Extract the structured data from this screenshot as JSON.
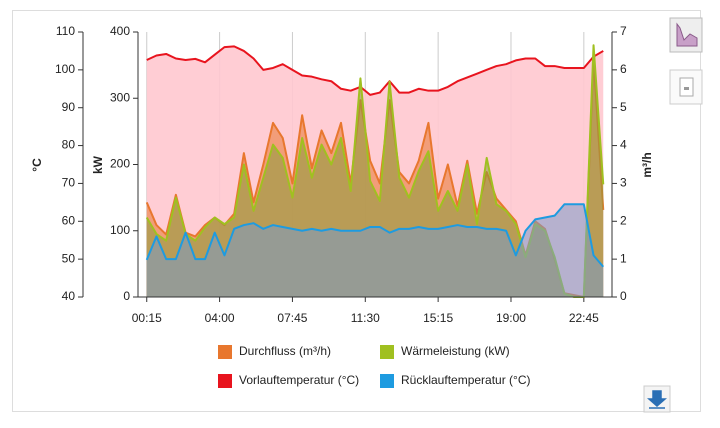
{
  "chart_data": {
    "type": "area",
    "ylabel": "°C",
    "y2label": "kW",
    "y3label": "m³/h",
    "ylim": [
      40,
      110
    ],
    "yticks": [
      40,
      50,
      60,
      70,
      80,
      90,
      100,
      110
    ],
    "y2lim": [
      0,
      400
    ],
    "y2ticks": [
      0,
      100,
      200,
      300,
      400
    ],
    "y3lim": [
      0,
      7
    ],
    "y3ticks": [
      0,
      1,
      2,
      3,
      4,
      5,
      6,
      7
    ],
    "xlim": [
      -0.2,
      24.2
    ],
    "xticks": [
      {
        "value": 0.25,
        "label": "00:15"
      },
      {
        "value": 4,
        "label": "04:00"
      },
      {
        "value": 7.75,
        "label": "07:45"
      },
      {
        "value": 11.5,
        "label": "11:30"
      },
      {
        "value": 15.25,
        "label": "15:15"
      },
      {
        "value": 19,
        "label": "19:00"
      },
      {
        "value": 22.75,
        "label": "22:45"
      }
    ],
    "grid": true,
    "x": [
      0.25,
      0.75,
      1.25,
      1.75,
      2.25,
      2.75,
      3.25,
      3.75,
      4.25,
      4.75,
      5.25,
      5.75,
      6.25,
      6.75,
      7.25,
      7.75,
      8.25,
      8.75,
      9.25,
      9.75,
      10.25,
      10.75,
      11.25,
      11.75,
      12.25,
      12.75,
      13.25,
      13.75,
      14.25,
      14.75,
      15.25,
      15.75,
      16.25,
      16.75,
      17.25,
      17.75,
      18.25,
      18.75,
      19.25,
      19.75,
      20.25,
      20.75,
      21.25,
      21.75,
      22.25,
      22.75,
      23.25,
      23.75
    ],
    "series": [
      {
        "name": "Vorlauftemperatur (°C)",
        "color": "#e8141e",
        "fill": "#ffc8cf",
        "axis": "y",
        "values": [
          102.6,
          103.8,
          104.2,
          103,
          102.6,
          102.9,
          102,
          104,
          106,
          106.2,
          105,
          103,
          100,
          100.5,
          101.5,
          100,
          98.5,
          98.2,
          97.5,
          97,
          95,
          94.5,
          95.5,
          93.4,
          94,
          97,
          94,
          94,
          95,
          94.5,
          94.5,
          95.5,
          97,
          98,
          99,
          100,
          101,
          101.5,
          102.5,
          103,
          103,
          101,
          101,
          100.5,
          100.5,
          100.5,
          103.5,
          105
        ]
      },
      {
        "name": "Durchfluss (m³/h)",
        "color": "#e8772e",
        "fill": "#e8772e",
        "axis": "y3",
        "values": [
          2.5,
          1.9,
          1.65,
          2.7,
          1.7,
          1.6,
          1.9,
          2.1,
          1.9,
          2.2,
          3.8,
          2.5,
          3.5,
          4.6,
          4.2,
          3.0,
          4.8,
          3.4,
          4.4,
          3.8,
          4.6,
          3.0,
          5.2,
          3.6,
          3.0,
          5.2,
          3.3,
          3.0,
          3.6,
          4.6,
          2.6,
          3.5,
          2.4,
          3.6,
          2.2,
          3.3,
          2.6,
          2.3,
          2.0,
          1.1,
          2.0,
          1.8,
          1.0,
          0.1,
          0.05,
          0,
          6.3,
          2.3
        ]
      },
      {
        "name": "Wärmeleistung (kW)",
        "color": "#a0c020",
        "fill": "#8a9a3a",
        "axis": "y2",
        "values": [
          120,
          95,
          85,
          150,
          95,
          85,
          105,
          120,
          110,
          120,
          200,
          130,
          180,
          230,
          210,
          150,
          240,
          180,
          230,
          200,
          240,
          160,
          330,
          175,
          145,
          325,
          180,
          150,
          190,
          220,
          130,
          160,
          130,
          200,
          110,
          210,
          140,
          130,
          110,
          60,
          110,
          100,
          60,
          5,
          0,
          0,
          380,
          170
        ]
      },
      {
        "name": "Rücklauftemperatur (°C)",
        "color": "#1e9be0",
        "fill": "#7a9ac8",
        "axis": "y",
        "values": [
          49.8,
          56,
          50,
          50,
          57,
          50,
          50,
          57,
          51,
          58,
          59,
          59.5,
          58,
          59,
          58.5,
          58,
          57.5,
          58,
          57.5,
          58,
          57.5,
          57.5,
          57.5,
          58.5,
          58.5,
          57,
          58,
          58,
          58.5,
          58,
          58,
          58.5,
          59,
          58.5,
          58.5,
          58,
          58,
          57.5,
          51,
          57.5,
          60.5,
          61,
          61.5,
          64.5,
          64.5,
          64.5,
          51,
          48
        ]
      }
    ]
  }
}
